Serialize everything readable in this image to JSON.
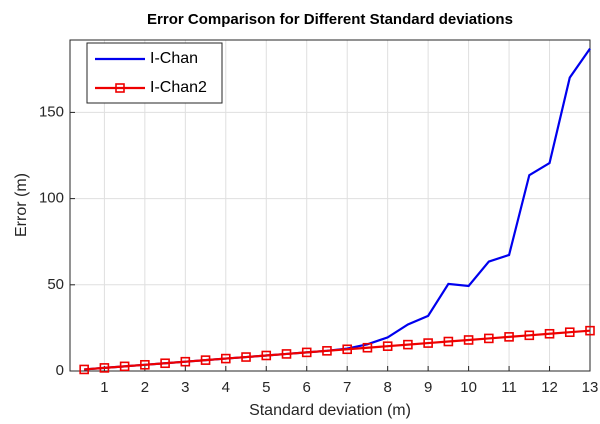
{
  "chart_data": {
    "type": "line",
    "title": "Error Comparison for Different Standard deviations",
    "xlabel": "Standard deviation (m)",
    "ylabel": "Error (m)",
    "x": [
      0.5,
      1,
      1.5,
      2,
      2.5,
      3,
      3.5,
      4,
      4.5,
      5,
      5.5,
      6,
      6.5,
      7,
      7.5,
      8,
      8.5,
      9,
      9.5,
      10,
      10.5,
      11,
      11.5,
      12,
      12.5,
      13
    ],
    "series": [
      {
        "name": "I-Chan",
        "color": "#0000ee",
        "marker": "none",
        "values": [
          0.9,
          1.8,
          2.7,
          3.6,
          4.5,
          5.4,
          6.3,
          7.2,
          8.1,
          9,
          9.9,
          10.8,
          11.7,
          13,
          15.5,
          19.5,
          27,
          32,
          50.5,
          49.3,
          63.5,
          67.3,
          113.6,
          120.6,
          170.2,
          187
        ]
      },
      {
        "name": "I-Chan2",
        "color": "#ee0000",
        "marker": "square",
        "values": [
          0.9,
          1.8,
          2.7,
          3.6,
          4.5,
          5.4,
          6.3,
          7.2,
          8.1,
          9,
          9.9,
          10.8,
          11.7,
          12.6,
          13.5,
          14.4,
          15.3,
          16.2,
          17.1,
          18,
          18.9,
          19.8,
          20.7,
          21.6,
          22.5,
          23.4
        ]
      }
    ],
    "xlim": [
      0.15,
      13
    ],
    "ylim": [
      0,
      192
    ],
    "xticks": [
      1,
      2,
      3,
      4,
      5,
      6,
      7,
      8,
      9,
      10,
      11,
      12,
      13
    ],
    "yticks": [
      0,
      50,
      100,
      150
    ],
    "grid": true,
    "legend": "upper left"
  }
}
